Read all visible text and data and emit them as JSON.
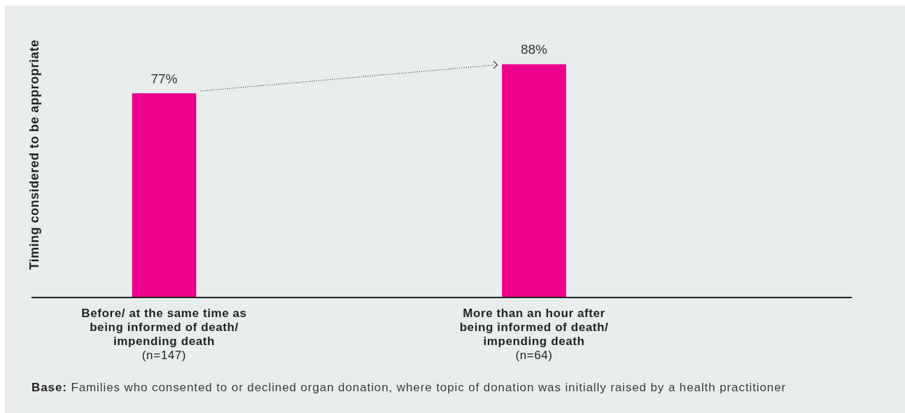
{
  "chart_data": {
    "type": "bar",
    "ylabel": "Timing considered to be appropriate",
    "categories": [
      "Before/ at the same time as\nbeing informed of death/\nimpending death\n(n=147)",
      "More than an hour after\nbeing informed of death/\nimpending death\n(n=64)"
    ],
    "values": [
      77,
      88
    ],
    "color": "#ec008c",
    "value_labels": [
      "77%",
      "88%"
    ],
    "tick_labels": "x",
    "annotations": [
      "Base: Families who consented to or declined organ donation, where topic of donation was initially raised by a health practitioner"
    ]
  }
}
